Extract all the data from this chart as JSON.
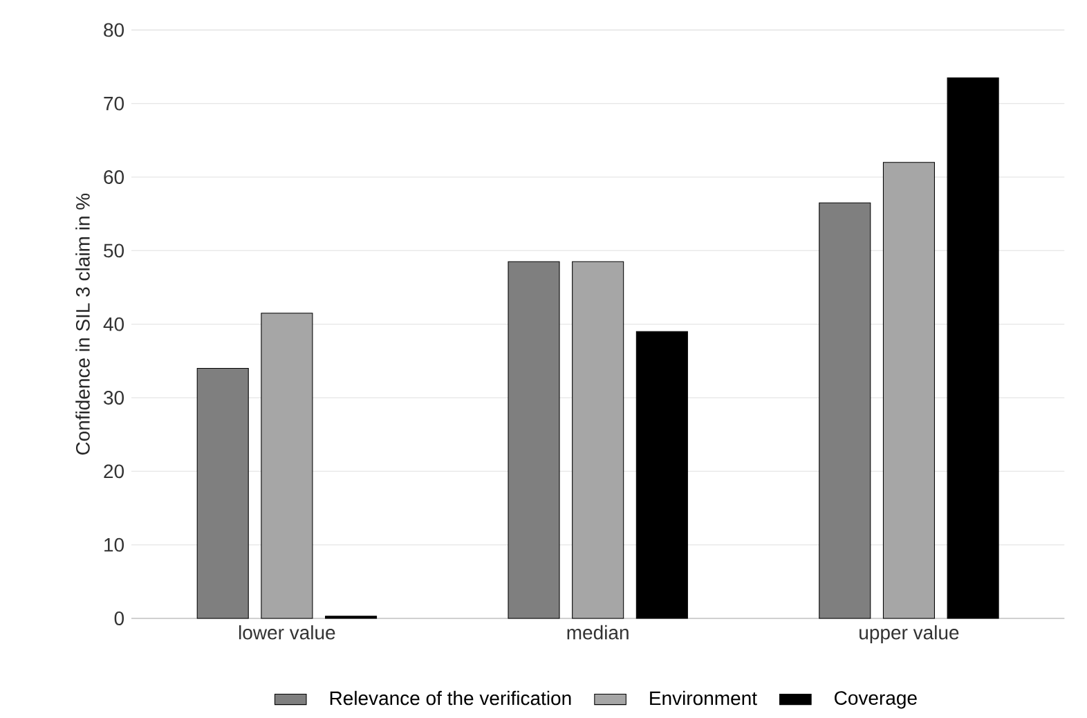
{
  "chart_data": {
    "type": "bar",
    "ylabel": "Confidence in SIL 3 claim in %",
    "categories": [
      "lower value",
      "median",
      "upper value"
    ],
    "series": [
      {
        "name": "Relevance of the verification",
        "color": "#7f7f7f",
        "values": [
          34,
          48.5,
          56.5
        ]
      },
      {
        "name": "Environment",
        "color": "#a6a6a6",
        "values": [
          41.5,
          48.5,
          62
        ]
      },
      {
        "name": "Coverage",
        "color": "#000000",
        "values": [
          0.3,
          39,
          73.5
        ]
      }
    ],
    "ylim": [
      0,
      80
    ],
    "yticks": [
      0,
      10,
      20,
      30,
      40,
      50,
      60,
      70,
      80
    ],
    "grid": "y",
    "legend": "bottom"
  }
}
